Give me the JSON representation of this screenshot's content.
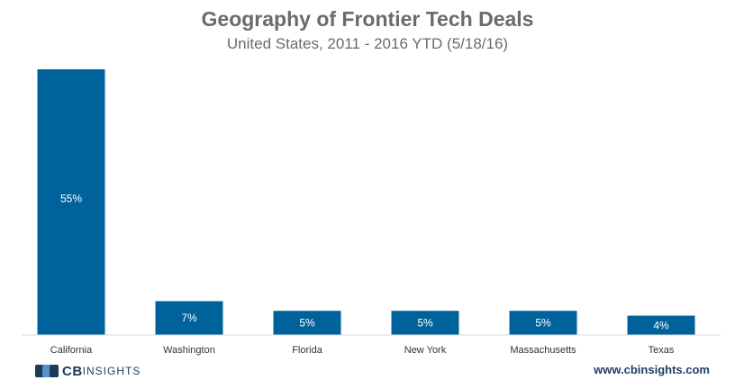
{
  "chart_data": {
    "type": "bar",
    "title": "Geography of Frontier Tech Deals",
    "subtitle": "United States,  2011 - 2016 YTD (5/18/16)",
    "categories": [
      "California",
      "Washington",
      "Florida",
      "New York",
      "Massachusetts",
      "Texas"
    ],
    "values": [
      55,
      7,
      5,
      5,
      5,
      4
    ],
    "value_labels": [
      "55%",
      "7%",
      "5%",
      "5%",
      "5%",
      "4%"
    ],
    "ylim": [
      0,
      55
    ],
    "xlabel": "",
    "ylabel": "",
    "grid": false,
    "legend": "none",
    "bar_color": "#00629b"
  },
  "footer": {
    "logo_cb": "CB",
    "logo_insights": "INSIGHTS",
    "website": "www.cbinsights.com"
  },
  "colors": {
    "title": "#6b6b6b",
    "brand": "#1a3b5c",
    "accent": "#00629b"
  }
}
